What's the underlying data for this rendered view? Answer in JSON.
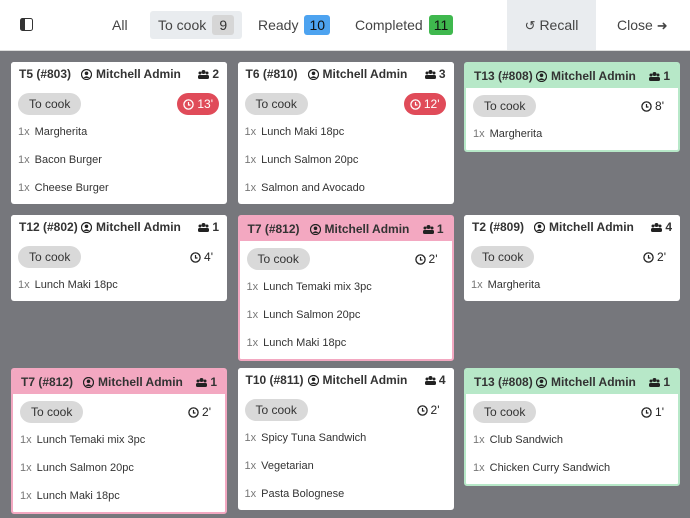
{
  "toolbar": {
    "tabs": [
      {
        "label": "All"
      },
      {
        "label": "To cook",
        "count": 9
      },
      {
        "label": "Ready",
        "count": 10
      },
      {
        "label": "Completed",
        "count": 11
      }
    ],
    "recall": "Recall",
    "close": "Close"
  },
  "orders": [
    {
      "title": "T5 (#803)",
      "user": "Mitchell Admin",
      "guests": 2,
      "status": "To cook",
      "timer": "13'",
      "late": true,
      "color": "white",
      "items": [
        {
          "qty": "1x",
          "name": "Margherita"
        },
        {
          "qty": "1x",
          "name": "Bacon Burger"
        },
        {
          "qty": "1x",
          "name": "Cheese Burger"
        }
      ]
    },
    {
      "title": "T6 (#810)",
      "user": "Mitchell Admin",
      "guests": 3,
      "status": "To cook",
      "timer": "12'",
      "late": true,
      "color": "white",
      "items": [
        {
          "qty": "1x",
          "name": "Lunch Maki 18pc"
        },
        {
          "qty": "1x",
          "name": "Lunch Salmon 20pc"
        },
        {
          "qty": "1x",
          "name": "Salmon and Avocado"
        }
      ]
    },
    {
      "title": "T13 (#808)",
      "user": "Mitchell Admin",
      "guests": 1,
      "status": "To cook",
      "timer": "8'",
      "late": false,
      "color": "green",
      "items": [
        {
          "qty": "1x",
          "name": "Margherita"
        }
      ]
    },
    {
      "title": "T12 (#802)",
      "user": "Mitchell Admin",
      "guests": 1,
      "status": "To cook",
      "timer": "4'",
      "late": false,
      "color": "white",
      "items": [
        {
          "qty": "1x",
          "name": "Lunch Maki 18pc"
        }
      ]
    },
    {
      "title": "T7 (#812)",
      "user": "Mitchell Admin",
      "guests": 1,
      "status": "To cook",
      "timer": "2'",
      "late": false,
      "color": "pink",
      "items": [
        {
          "qty": "1x",
          "name": "Lunch Temaki mix 3pc"
        },
        {
          "qty": "1x",
          "name": "Lunch Salmon 20pc"
        },
        {
          "qty": "1x",
          "name": "Lunch Maki 18pc"
        }
      ]
    },
    {
      "title": "T2 (#809)",
      "user": "Mitchell Admin",
      "guests": 4,
      "status": "To cook",
      "timer": "2'",
      "late": false,
      "color": "white",
      "items": [
        {
          "qty": "1x",
          "name": "Margherita"
        }
      ]
    },
    {
      "title": "T7 (#812)",
      "user": "Mitchell Admin",
      "guests": 1,
      "status": "To cook",
      "timer": "2'",
      "late": false,
      "color": "pink",
      "items": [
        {
          "qty": "1x",
          "name": "Lunch Temaki mix 3pc"
        },
        {
          "qty": "1x",
          "name": "Lunch Salmon 20pc"
        },
        {
          "qty": "1x",
          "name": "Lunch Maki 18pc"
        }
      ]
    },
    {
      "title": "T10 (#811)",
      "user": "Mitchell Admin",
      "guests": 4,
      "status": "To cook",
      "timer": "2'",
      "late": false,
      "color": "white",
      "items": [
        {
          "qty": "1x",
          "name": "Spicy Tuna Sandwich"
        },
        {
          "qty": "1x",
          "name": "Vegetarian"
        },
        {
          "qty": "1x",
          "name": "Pasta Bolognese"
        }
      ]
    },
    {
      "title": "T13 (#808)",
      "user": "Mitchell Admin",
      "guests": 1,
      "status": "To cook",
      "timer": "1'",
      "late": false,
      "color": "green",
      "items": [
        {
          "qty": "1x",
          "name": "Club Sandwich"
        },
        {
          "qty": "1x",
          "name": "Chicken Curry Sandwich"
        }
      ]
    }
  ]
}
